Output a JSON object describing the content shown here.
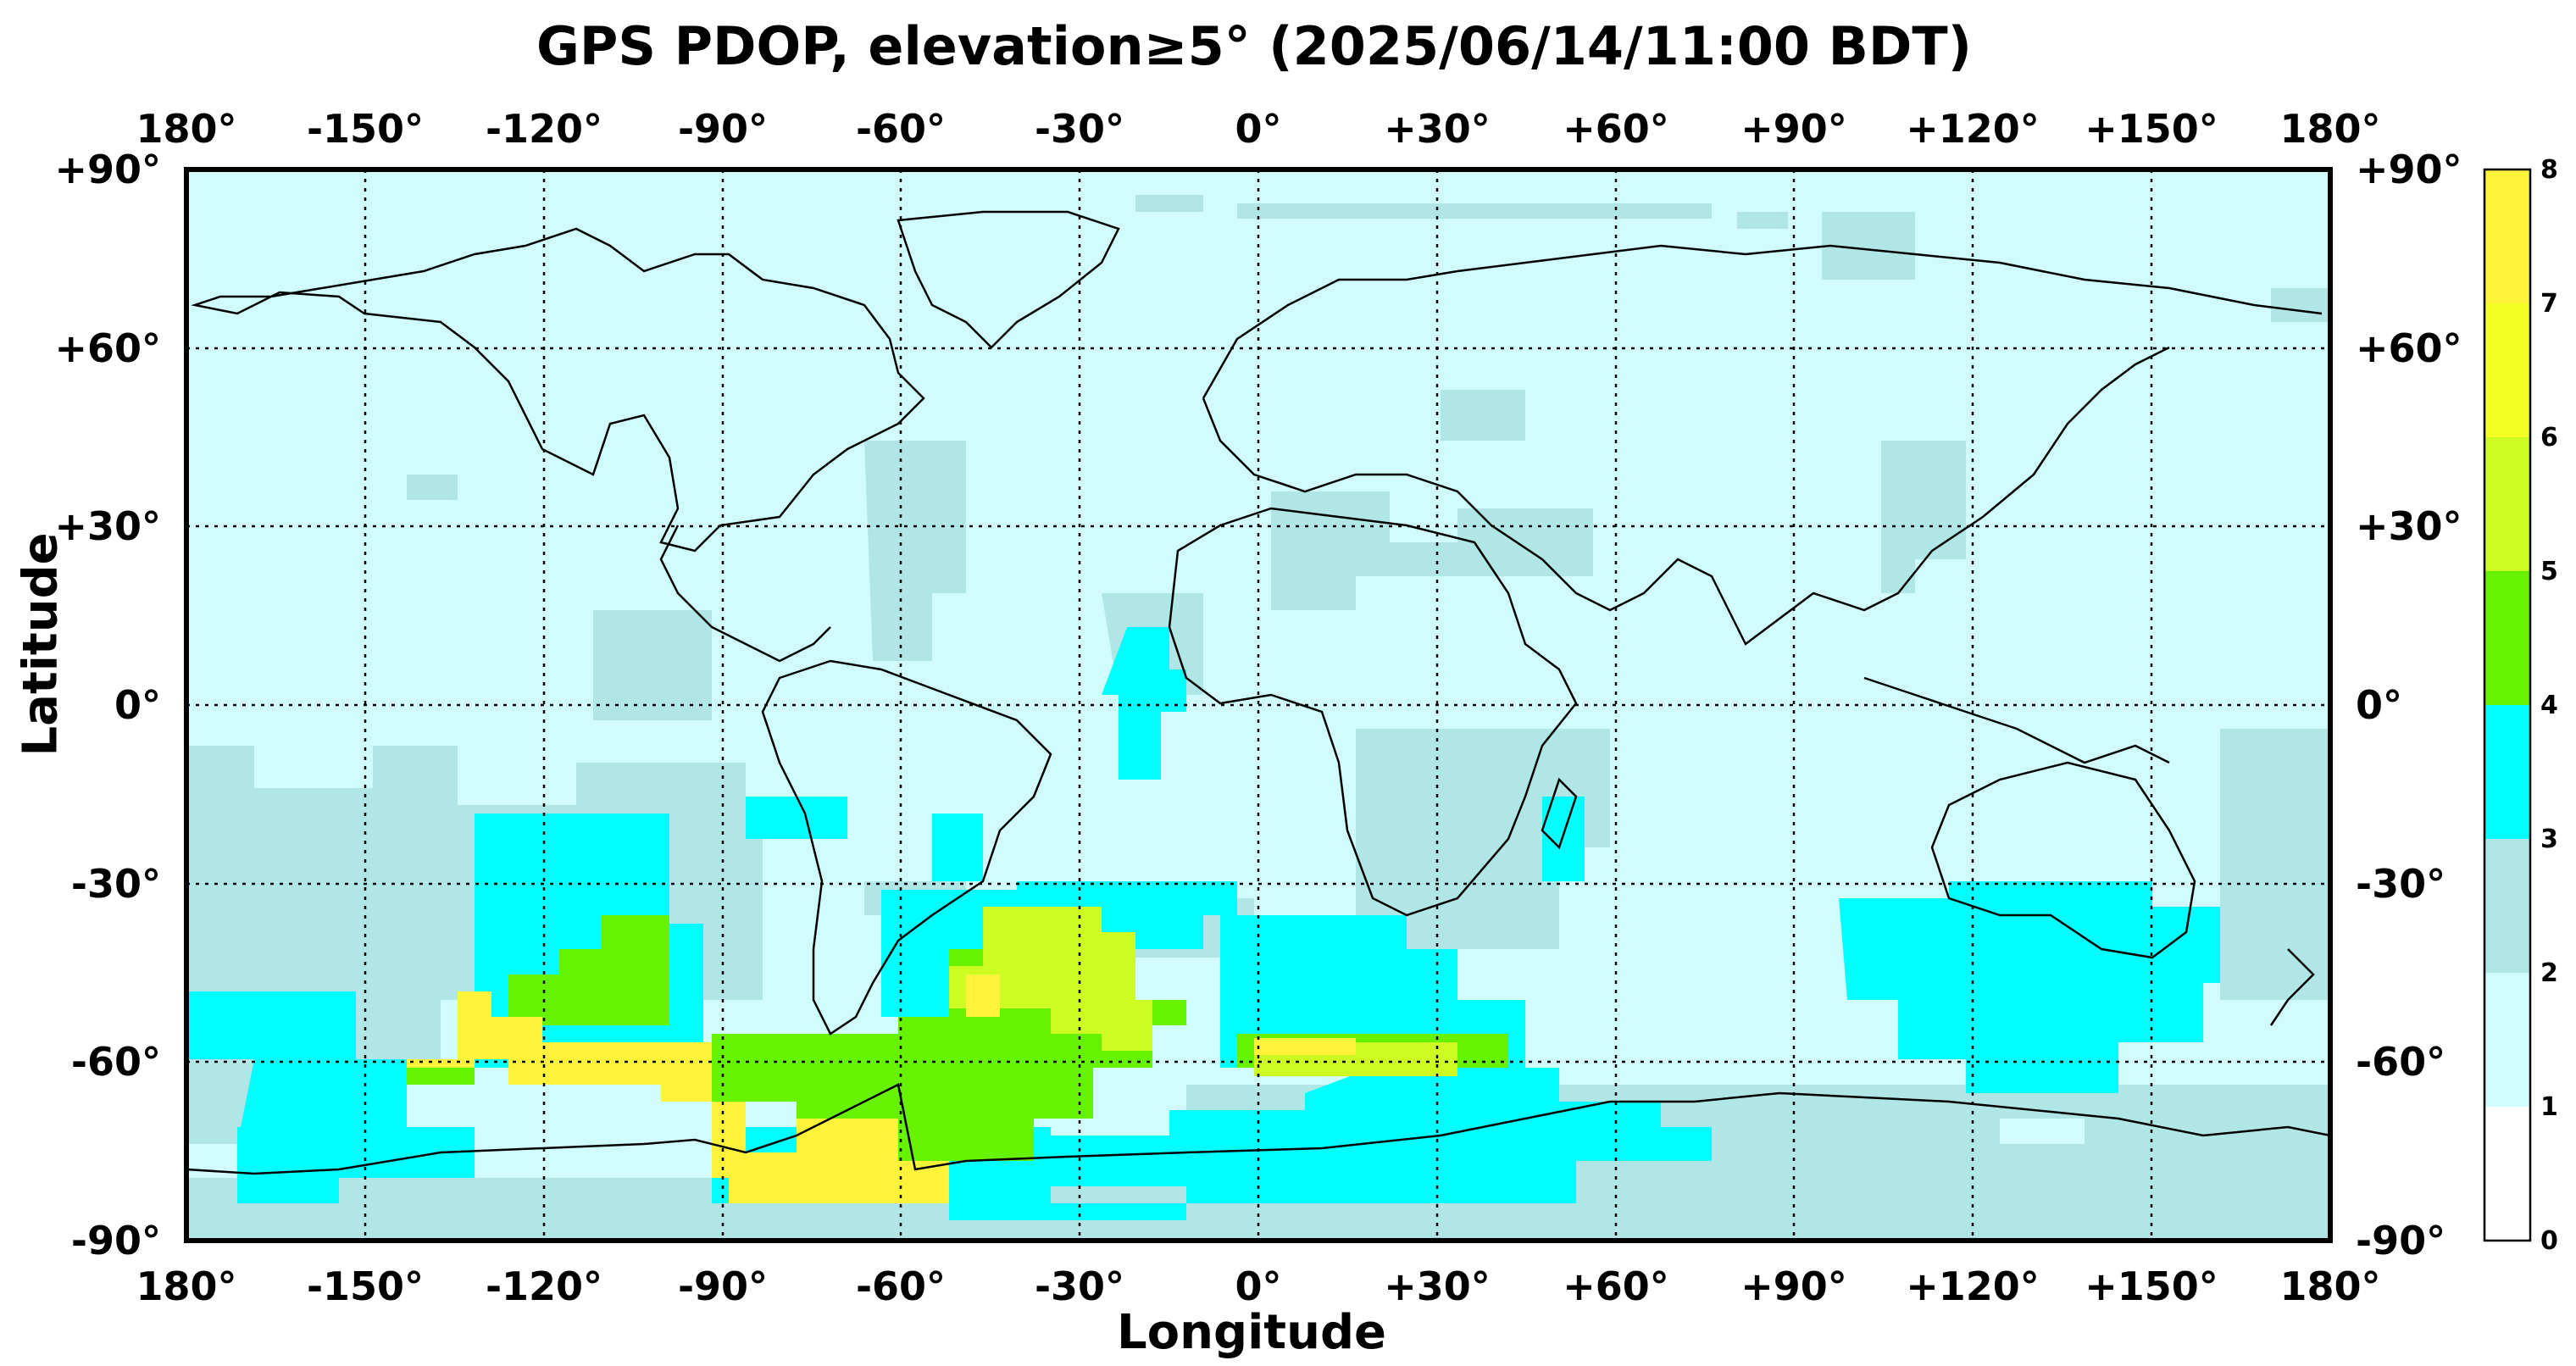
{
  "title": "GPS PDOP, elevation≥5° (2025/06/14/11:00 BDT)",
  "axes": {
    "xlabel": "Longitude",
    "ylabel": "Latitude",
    "lon_ticks": [
      "180°",
      "-150°",
      "-120°",
      "-90°",
      "-60°",
      "-30°",
      "0°",
      "+30°",
      "+60°",
      "+90°",
      "+120°",
      "+150°",
      "180°"
    ],
    "lat_ticks": [
      "+90°",
      "+60°",
      "+30°",
      "0°",
      "-30°",
      "-60°",
      "-90°"
    ],
    "lon_range": [
      -180,
      180
    ],
    "lat_range": [
      -90,
      90
    ],
    "grid": "dotted"
  },
  "colorbar": {
    "ticks": [
      "0",
      "1",
      "2",
      "3",
      "4",
      "5",
      "6",
      "7",
      "8"
    ],
    "colors": [
      "#ffffff",
      "#d0fcfc",
      "#b0e6e6",
      "#00ffff",
      "#66f200",
      "#ccfc22",
      "#f4ff22",
      "#fff23a"
    ]
  },
  "map_regions": [
    {
      "name": "region-low-dop",
      "level": 1.5
    },
    {
      "name": "region-pdop-2-3",
      "level": 2.5
    },
    {
      "name": "region-pdop-3-4",
      "level": 3.5
    },
    {
      "name": "region-pdop-4-5",
      "level": 4.5
    },
    {
      "name": "region-pdop-5-6",
      "level": 5.5
    },
    {
      "name": "region-pdop-7-8",
      "level": 7.5
    }
  ]
}
